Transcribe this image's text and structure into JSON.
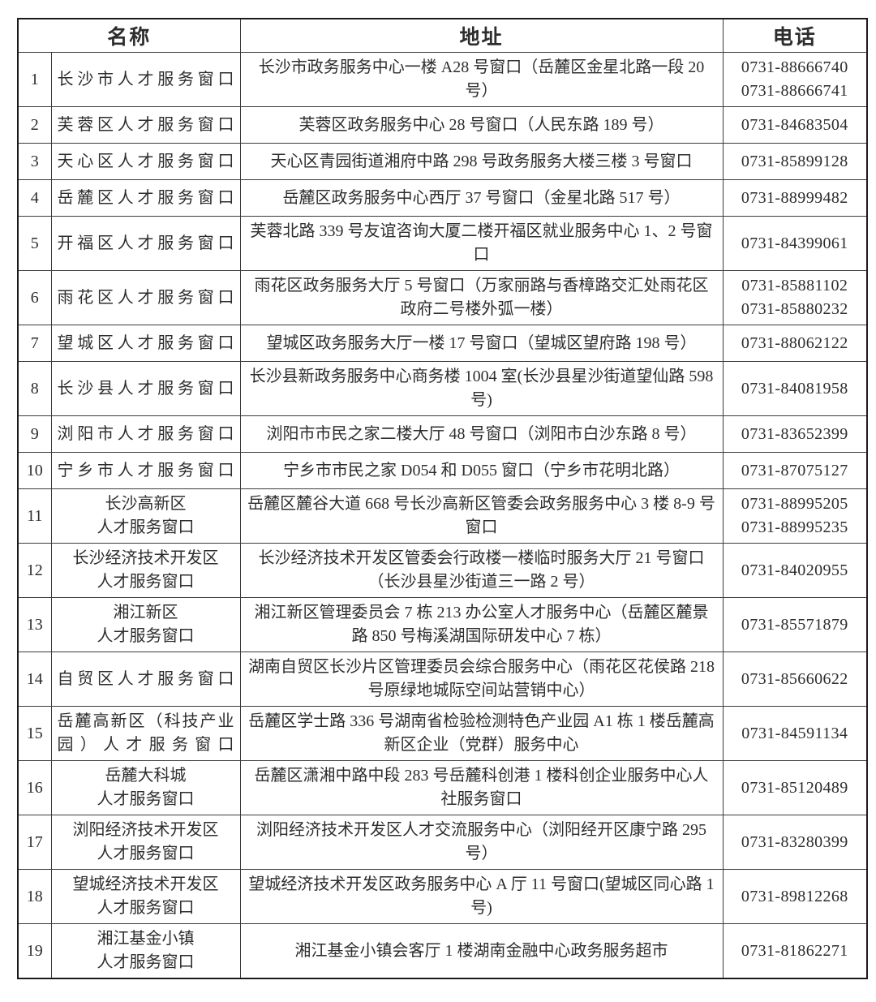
{
  "page": {
    "background": "#ffffff",
    "text_color": "#2d2d2d",
    "border_color": "#3b3b3b"
  },
  "table": {
    "headers": {
      "name": "名称",
      "address": "地址",
      "phone": "电话"
    },
    "rows": [
      {
        "no": "1",
        "name": "长沙市人才服务窗口",
        "address": "长沙市政务服务中心一楼 A28 号窗口（岳麓区金星北路一段 20 号）",
        "phones": [
          "0731-88666740",
          "0731-88666741"
        ]
      },
      {
        "no": "2",
        "name": "芙蓉区人才服务窗口",
        "address": "芙蓉区政务服务中心 28 号窗口（人民东路 189 号）",
        "phones": [
          "0731-84683504"
        ]
      },
      {
        "no": "3",
        "name": "天心区人才服务窗口",
        "address": "天心区青园街道湘府中路 298 号政务服务大楼三楼 3 号窗口",
        "phones": [
          "0731-85899128"
        ]
      },
      {
        "no": "4",
        "name": "岳麓区人才服务窗口",
        "address": "岳麓区政务服务中心西厅 37 号窗口（金星北路 517 号）",
        "phones": [
          "0731-88999482"
        ]
      },
      {
        "no": "5",
        "name": "开福区人才服务窗口",
        "address": "芙蓉北路 339 号友谊咨询大厦二楼开福区就业服务中心 1、2 号窗口",
        "phones": [
          "0731-84399061"
        ]
      },
      {
        "no": "6",
        "name": "雨花区人才服务窗口",
        "address": "雨花区政务服务大厅 5 号窗口（万家丽路与香樟路交汇处雨花区政府二号楼外弧一楼）",
        "phones": [
          "0731-85881102",
          "0731-85880232"
        ]
      },
      {
        "no": "7",
        "name": "望城区人才服务窗口",
        "address": "望城区政务服务大厅一楼 17 号窗口（望城区望府路 198 号）",
        "phones": [
          "0731-88062122"
        ]
      },
      {
        "no": "8",
        "name": "长沙县人才服务窗口",
        "address": "长沙县新政务服务中心商务楼 1004 室(长沙县星沙街道望仙路 598 号)",
        "phones": [
          "0731-84081958"
        ]
      },
      {
        "no": "9",
        "name": "浏阳市人才服务窗口",
        "address": "浏阳市市民之家二楼大厅 48 号窗口（浏阳市白沙东路 8 号）",
        "phones": [
          "0731-83652399"
        ]
      },
      {
        "no": "10",
        "name": "宁乡市人才服务窗口",
        "address": "宁乡市市民之家 D054 和 D055 窗口（宁乡市花明北路）",
        "phones": [
          "0731-87075127"
        ]
      },
      {
        "no": "11",
        "name": "长沙高新区\n人才服务窗口",
        "address": "岳麓区麓谷大道 668 号长沙高新区管委会政务服务中心 3 楼 8-9 号窗口",
        "phones": [
          "0731-88995205",
          "0731-88995235"
        ]
      },
      {
        "no": "12",
        "name": "长沙经济技术开发区\n人才服务窗口",
        "address": "长沙经济技术开发区管委会行政楼一楼临时服务大厅 21 号窗口（长沙县星沙街道三一路 2 号）",
        "phones": [
          "0731-84020955"
        ]
      },
      {
        "no": "13",
        "name": "湘江新区\n人才服务窗口",
        "address": "湘江新区管理委员会 7 栋 213 办公室人才服务中心（岳麓区麓景路 850 号梅溪湖国际研发中心 7 栋）",
        "phones": [
          "0731-85571879"
        ]
      },
      {
        "no": "14",
        "name": "自贸区人才服务窗口",
        "address": "湖南自贸区长沙片区管理委员会综合服务中心（雨花区花侯路 218 号原绿地城际空间站营销中心）",
        "phones": [
          "0731-85660622"
        ]
      },
      {
        "no": "15",
        "name": "岳麓高新区（科技产业园）人才服务窗口",
        "address": "岳麓区学士路 336 号湖南省检验检测特色产业园 A1 栋 1 楼岳麓高新区企业（党群）服务中心",
        "phones": [
          "0731-84591134"
        ]
      },
      {
        "no": "16",
        "name": "岳麓大科城\n人才服务窗口",
        "address": "岳麓区潇湘中路中段 283 号岳麓科创港 1 楼科创企业服务中心人社服务窗口",
        "phones": [
          "0731-85120489"
        ]
      },
      {
        "no": "17",
        "name": "浏阳经济技术开发区\n人才服务窗口",
        "address": "浏阳经济技术开发区人才交流服务中心（浏阳经开区康宁路 295 号）",
        "phones": [
          "0731-83280399"
        ]
      },
      {
        "no": "18",
        "name": "望城经济技术开发区\n人才服务窗口",
        "address": "望城经济技术开发区政务服务中心 A 厅 11 号窗口(望城区同心路 1 号)",
        "phones": [
          "0731-89812268"
        ]
      },
      {
        "no": "19",
        "name": "湘江基金小镇\n人才服务窗口",
        "address": "湘江基金小镇会客厅 1 楼湖南金融中心政务服务超市",
        "phones": [
          "0731-81862271"
        ]
      }
    ]
  }
}
